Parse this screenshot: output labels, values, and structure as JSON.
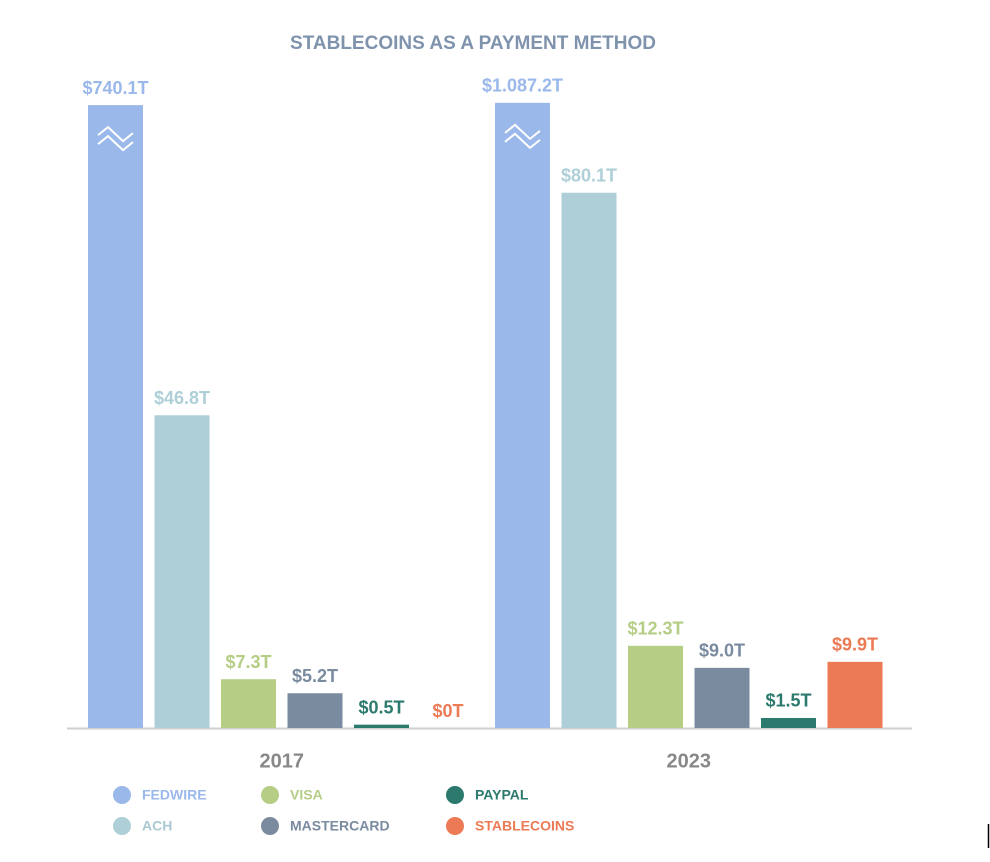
{
  "chart_data": {
    "type": "bar",
    "title": "STABLECOINS AS A PAYMENT METHOD",
    "categories": [
      "2017",
      "2023"
    ],
    "series": [
      {
        "name": "FEDWIRE",
        "color": "#9ab8ea",
        "values": [
          740.1,
          1087.2
        ],
        "value_labels": [
          "$740.1T",
          "$1.087.2T"
        ]
      },
      {
        "name": "ACH",
        "color": "#aecfd8",
        "values": [
          46.8,
          80.1
        ],
        "value_labels": [
          "$46.8T",
          "$80.1T"
        ]
      },
      {
        "name": "VISA",
        "color": "#b5cd85",
        "values": [
          7.3,
          12.3
        ],
        "value_labels": [
          "$7.3T",
          "$12.3T"
        ]
      },
      {
        "name": "MASTERCARD",
        "color": "#7a8ba0",
        "values": [
          5.2,
          9.0
        ],
        "value_labels": [
          "$5.2T",
          "$9.0T"
        ]
      },
      {
        "name": "PAYPAL",
        "color": "#2c7a6e",
        "values": [
          0.5,
          1.5
        ],
        "value_labels": [
          "$0.5T",
          "$1.5T"
        ]
      },
      {
        "name": "STABLECOINS",
        "color": "#ec7b55",
        "values": [
          0,
          9.9
        ],
        "value_labels": [
          "$0T",
          "$9.9T"
        ]
      }
    ],
    "ylim": [
      0,
      85
    ],
    "axis_break": true,
    "grid": false
  }
}
